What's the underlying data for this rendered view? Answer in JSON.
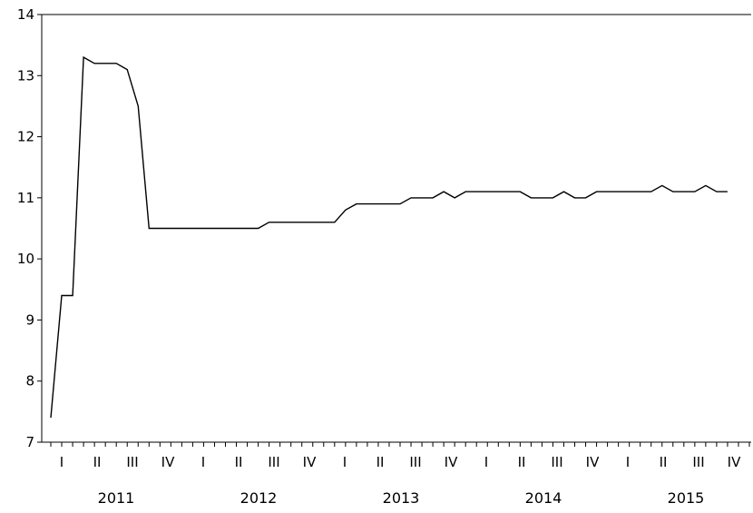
{
  "chart_data": {
    "type": "line",
    "title": "",
    "xlabel": "",
    "ylabel": "",
    "ylim": [
      7,
      14
    ],
    "y_ticks": [
      7,
      8,
      9,
      10,
      11,
      12,
      13,
      14
    ],
    "grid": false,
    "legend": "none",
    "line_color": "#000000",
    "quarter_labels": [
      "I",
      "II",
      "III",
      "IV",
      "I",
      "II",
      "III",
      "IV",
      "I",
      "II",
      "III",
      "IV",
      "I",
      "II",
      "III",
      "IV",
      "I",
      "II",
      "III",
      "IV"
    ],
    "years": [
      "2011",
      "2012",
      "2013",
      "2014",
      "2015"
    ],
    "x": [
      "2011-01",
      "2011-02",
      "2011-03",
      "2011-04",
      "2011-05",
      "2011-06",
      "2011-07",
      "2011-08",
      "2011-09",
      "2011-10",
      "2011-11",
      "2011-12",
      "2012-01",
      "2012-02",
      "2012-03",
      "2012-04",
      "2012-05",
      "2012-06",
      "2012-07",
      "2012-08",
      "2012-09",
      "2012-10",
      "2012-11",
      "2012-12",
      "2013-01",
      "2013-02",
      "2013-03",
      "2013-04",
      "2013-05",
      "2013-06",
      "2013-07",
      "2013-08",
      "2013-09",
      "2013-10",
      "2013-11",
      "2013-12",
      "2014-01",
      "2014-02",
      "2014-03",
      "2014-04",
      "2014-05",
      "2014-06",
      "2014-07",
      "2014-08",
      "2014-09",
      "2014-10",
      "2014-11",
      "2014-12",
      "2015-01",
      "2015-02",
      "2015-03",
      "2015-04",
      "2015-05",
      "2015-06",
      "2015-07",
      "2015-08",
      "2015-09",
      "2015-10",
      "2015-11",
      "2015-12"
    ],
    "series": [
      {
        "values": [
          7.4,
          9.4,
          9.4,
          13.3,
          13.2,
          13.2,
          13.2,
          13.1,
          12.5,
          10.5,
          10.5,
          10.5,
          10.5,
          10.5,
          10.5,
          10.5,
          10.5,
          10.5,
          10.5,
          10.5,
          10.6,
          10.6,
          10.6,
          10.6,
          10.6,
          10.6,
          10.6,
          10.8,
          10.9,
          10.9,
          10.9,
          10.9,
          10.9,
          11.0,
          11.0,
          11.0,
          11.1,
          11.0,
          11.1,
          11.1,
          11.1,
          11.1,
          11.1,
          11.1,
          11.0,
          11.0,
          11.0,
          11.1,
          11.0,
          11.0,
          11.1,
          11.1,
          11.1,
          11.1,
          11.1,
          11.1,
          11.2,
          11.1,
          11.1,
          11.1
        ]
      }
    ],
    "extra_points": [
      {
        "x": "2015-12b",
        "value": 11.2
      },
      {
        "x": "2015-12c",
        "value": 11.1
      },
      {
        "x": "2015-12d",
        "value": 11.1
      }
    ]
  }
}
